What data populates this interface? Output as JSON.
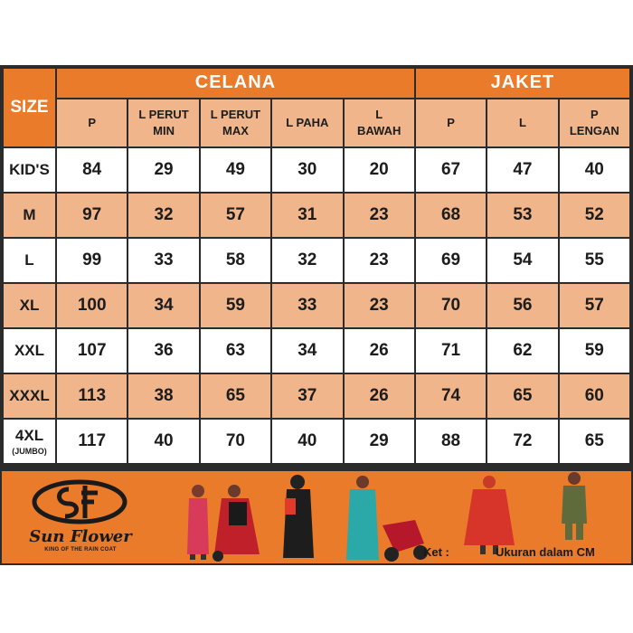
{
  "table": {
    "size_header": "SIZE",
    "groups": {
      "celana": "CELANA",
      "jaket": "JAKET"
    },
    "columns": {
      "celana": [
        {
          "line1": "P",
          "line2": ""
        },
        {
          "line1": "L PERUT",
          "line2": "MIN"
        },
        {
          "line1": "L PERUT",
          "line2": "MAX"
        },
        {
          "line1": "L PAHA",
          "line2": ""
        },
        {
          "line1": "L",
          "line2": "BAWAH"
        }
      ],
      "jaket": [
        {
          "line1": "P",
          "line2": ""
        },
        {
          "line1": "L",
          "line2": ""
        },
        {
          "line1": "P",
          "line2": "LENGAN"
        }
      ]
    },
    "rows": [
      {
        "size": "KID'S",
        "sub": "",
        "celana": [
          "84",
          "29",
          "49",
          "30",
          "20"
        ],
        "jaket": [
          "67",
          "47",
          "40"
        ]
      },
      {
        "size": "M",
        "sub": "",
        "celana": [
          "97",
          "32",
          "57",
          "31",
          "23"
        ],
        "jaket": [
          "68",
          "53",
          "52"
        ]
      },
      {
        "size": "L",
        "sub": "",
        "celana": [
          "99",
          "33",
          "58",
          "32",
          "23"
        ],
        "jaket": [
          "69",
          "54",
          "55"
        ]
      },
      {
        "size": "XL",
        "sub": "",
        "celana": [
          "100",
          "34",
          "59",
          "33",
          "23"
        ],
        "jaket": [
          "70",
          "56",
          "57"
        ]
      },
      {
        "size": "XXL",
        "sub": "",
        "celana": [
          "107",
          "36",
          "63",
          "34",
          "26"
        ],
        "jaket": [
          "71",
          "62",
          "59"
        ]
      },
      {
        "size": "XXXL",
        "sub": "",
        "celana": [
          "113",
          "38",
          "65",
          "37",
          "26"
        ],
        "jaket": [
          "74",
          "65",
          "60"
        ]
      },
      {
        "size": "4XL",
        "sub": "(JUMBO)",
        "celana": [
          "117",
          "40",
          "70",
          "40",
          "29"
        ],
        "jaket": [
          "88",
          "72",
          "65"
        ]
      }
    ]
  },
  "footer": {
    "brand_name": "Sun Flower",
    "tagline": "KING OF THE RAIN COAT",
    "ket_label": "Ket :",
    "unit_note": "Ukuran dalam CM"
  },
  "colors": {
    "orange": "#e97b2a",
    "peach": "#f0b58a",
    "border": "#2b2b2b"
  }
}
